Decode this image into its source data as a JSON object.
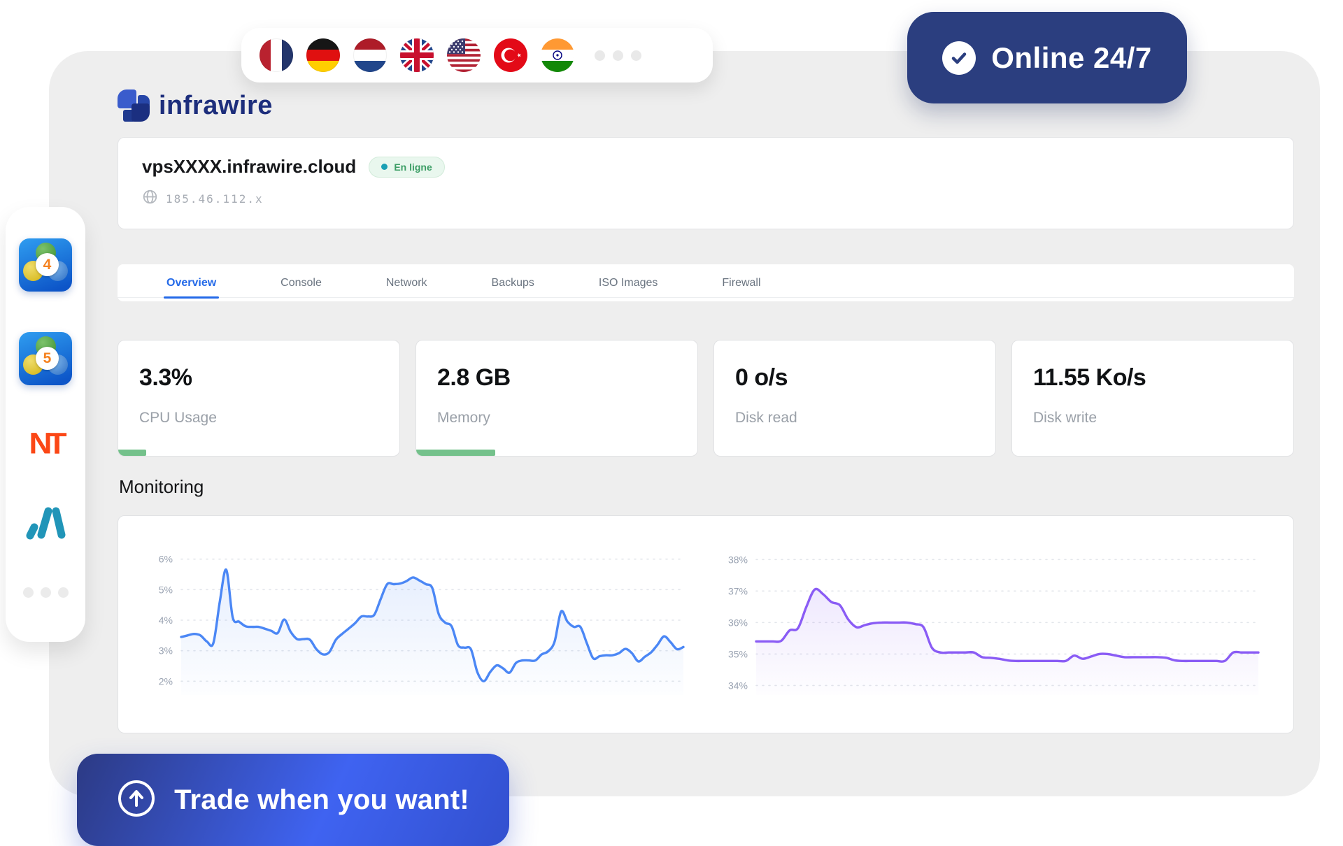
{
  "brand": {
    "name": "infrawire"
  },
  "online_badge": {
    "label": "Online 24/7",
    "icon": "check-icon"
  },
  "flags": [
    {
      "id": "fr",
      "name": "flag-france"
    },
    {
      "id": "de",
      "name": "flag-germany"
    },
    {
      "id": "nl",
      "name": "flag-netherlands"
    },
    {
      "id": "uk",
      "name": "flag-united-kingdom"
    },
    {
      "id": "us",
      "name": "flag-united-states"
    },
    {
      "id": "tr",
      "name": "flag-turkey"
    },
    {
      "id": "in",
      "name": "flag-india"
    }
  ],
  "server": {
    "hostname": "vpsXXXX.infrawire.cloud",
    "status_label": "En ligne",
    "ip": "185.46.112.x",
    "ip_icon": "globe-icon"
  },
  "tabs": [
    {
      "label": "Overview",
      "active": true
    },
    {
      "label": "Console",
      "active": false
    },
    {
      "label": "Network",
      "active": false
    },
    {
      "label": "Backups",
      "active": false
    },
    {
      "label": "ISO Images",
      "active": false
    },
    {
      "label": "Firewall",
      "active": false
    }
  ],
  "stats": [
    {
      "value": "3.3%",
      "label": "CPU Usage",
      "progress_pct": 10
    },
    {
      "value": "2.8 GB",
      "label": "Memory",
      "progress_pct": 28
    },
    {
      "value": "0 o/s",
      "label": "Disk read",
      "progress_pct": null
    },
    {
      "value": "11.55 Ko/s",
      "label": "Disk write",
      "progress_pct": null
    }
  ],
  "monitoring": {
    "title": "Monitoring"
  },
  "sidebar": {
    "apps": [
      {
        "id": "metatrader-4",
        "badge": "4"
      },
      {
        "id": "metatrader-5",
        "badge": "5"
      },
      {
        "id": "ninjatrader",
        "label": "NT"
      },
      {
        "id": "match-trader"
      }
    ],
    "more_icon": "ellipsis-icon"
  },
  "cta": {
    "label": "Trade when you want!",
    "icon": "arrow-up-circle-icon"
  },
  "colors": {
    "page_card": "#eeeeee",
    "accent_navy": "#2b3e7f",
    "accent_blue": "#2369e8",
    "cta_gradient_start": "#2c3a84",
    "cta_gradient_end": "#3f63f1",
    "progress_green": "#74c18b",
    "status_text_green": "#3d9e66",
    "status_dot_teal": "#1aa0b4",
    "chart_blue": "#4b87f5",
    "chart_purple": "#8a5cf5"
  },
  "chart_data": [
    {
      "id": "cpu-usage",
      "type": "area",
      "unit": "%",
      "title": "",
      "xlabel": "",
      "ylabel": "",
      "ytick_labels": [
        "6%",
        "5%",
        "4%",
        "3%",
        "2%"
      ],
      "yticks": [
        6,
        5,
        4,
        3,
        2
      ],
      "ylim": [
        1.55,
        6.45
      ],
      "grid": "dashed-horizontal",
      "legend": "none",
      "line_color": "#4b87f5",
      "values": [
        3.45,
        3.5,
        3.55,
        3.5,
        3.3,
        3.25,
        4.6,
        5.65,
        4.1,
        3.95,
        3.8,
        3.78,
        3.78,
        3.72,
        3.65,
        3.58,
        4.02,
        3.62,
        3.38,
        3.38,
        3.36,
        3.05,
        2.88,
        2.95,
        3.35,
        3.55,
        3.72,
        3.9,
        4.12,
        4.12,
        4.18,
        4.7,
        5.18,
        5.18,
        5.2,
        5.28,
        5.4,
        5.3,
        5.18,
        5.05,
        4.2,
        3.92,
        3.8,
        3.18,
        3.1,
        3.05,
        2.3,
        2.0,
        2.3,
        2.52,
        2.42,
        2.28,
        2.6,
        2.68,
        2.68,
        2.68,
        2.88,
        2.98,
        3.3,
        4.28,
        3.95,
        3.78,
        3.78,
        3.25,
        2.75,
        2.82,
        2.85,
        2.85,
        2.92,
        3.06,
        2.92,
        2.65,
        2.8,
        2.95,
        3.2,
        3.47,
        3.28,
        3.05,
        3.12
      ]
    },
    {
      "id": "memory-usage",
      "type": "area",
      "unit": "%",
      "title": "",
      "xlabel": "",
      "ylabel": "",
      "ytick_labels": [
        "38%",
        "37%",
        "36%",
        "35%",
        "34%"
      ],
      "yticks": [
        38,
        37,
        36,
        35,
        34
      ],
      "ylim": [
        33.7,
        38.45
      ],
      "grid": "dashed-horizontal",
      "legend": "none",
      "line_color": "#8a5cf5",
      "values": [
        35.4,
        35.4,
        35.4,
        35.42,
        35.75,
        35.82,
        36.5,
        37.05,
        36.9,
        36.65,
        36.55,
        36.1,
        35.85,
        35.92,
        35.98,
        36.0,
        36.0,
        36.0,
        36.0,
        35.95,
        35.85,
        35.2,
        35.05,
        35.05,
        35.05,
        35.05,
        35.05,
        34.9,
        34.88,
        34.85,
        34.8,
        34.78,
        34.78,
        34.78,
        34.78,
        34.78,
        34.78,
        34.78,
        34.95,
        34.85,
        34.92,
        35.0,
        35.0,
        34.95,
        34.9,
        34.9,
        34.9,
        34.9,
        34.9,
        34.88,
        34.8,
        34.78,
        34.78,
        34.78,
        34.78,
        34.78,
        34.78,
        35.05,
        35.05,
        35.05,
        35.05
      ]
    }
  ]
}
